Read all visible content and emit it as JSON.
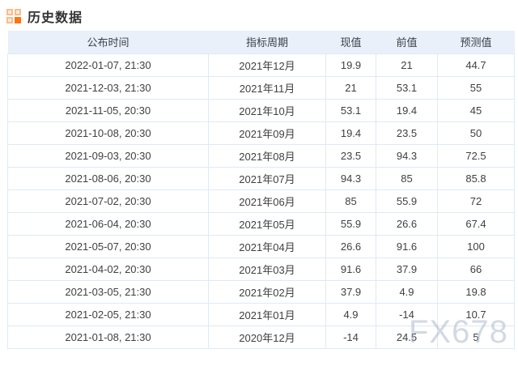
{
  "page": {
    "title": "历史数据"
  },
  "watermark": "FX678",
  "table": {
    "columns": [
      {
        "key": "publish-time",
        "label": "公布时间"
      },
      {
        "key": "indicator-period",
        "label": "指标周期"
      },
      {
        "key": "actual",
        "label": "现值"
      },
      {
        "key": "previous",
        "label": "前值"
      },
      {
        "key": "forecast",
        "label": "预测值"
      }
    ],
    "rows": [
      [
        "2022-01-07, 21:30",
        "2021年12月",
        "19.9",
        "21",
        "44.7"
      ],
      [
        "2021-12-03, 21:30",
        "2021年11月",
        "21",
        "53.1",
        "55"
      ],
      [
        "2021-11-05, 20:30",
        "2021年10月",
        "53.1",
        "19.4",
        "45"
      ],
      [
        "2021-10-08, 20:30",
        "2021年09月",
        "19.4",
        "23.5",
        "50"
      ],
      [
        "2021-09-03, 20:30",
        "2021年08月",
        "23.5",
        "94.3",
        "72.5"
      ],
      [
        "2021-08-06, 20:30",
        "2021年07月",
        "94.3",
        "85",
        "85.8"
      ],
      [
        "2021-07-02, 20:30",
        "2021年06月",
        "85",
        "55.9",
        "72"
      ],
      [
        "2021-06-04, 20:30",
        "2021年05月",
        "55.9",
        "26.6",
        "67.4"
      ],
      [
        "2021-05-07, 20:30",
        "2021年04月",
        "26.6",
        "91.6",
        "100"
      ],
      [
        "2021-04-02, 20:30",
        "2021年03月",
        "91.6",
        "37.9",
        "66"
      ],
      [
        "2021-03-05, 21:30",
        "2021年02月",
        "37.9",
        "4.9",
        "19.8"
      ],
      [
        "2021-02-05, 21:30",
        "2021年01月",
        "4.9",
        "-14",
        "10.7"
      ],
      [
        "2021-01-08, 21:30",
        "2020年12月",
        "-14",
        "24.5",
        "5"
      ]
    ]
  }
}
